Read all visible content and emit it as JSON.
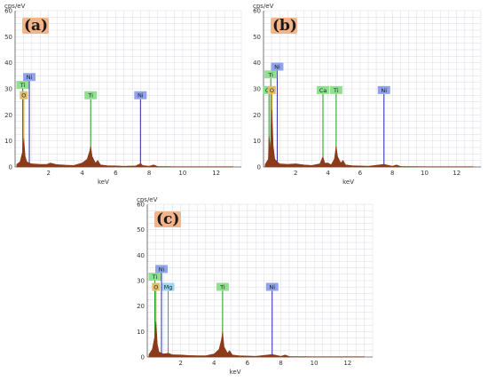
{
  "colors": {
    "grid": "#d9d9e3",
    "axis": "#555555",
    "spectrum_fill": "#8b3a1a",
    "panel_label_bg": "#f2b48a",
    "tag_ti": "#8fe08f",
    "tag_o": "#e0c070",
    "tag_ni": "#8fa3ee",
    "tag_ca": "#8fe08f",
    "tag_mg": "#99d6f0",
    "line_ti": "#1f9b1f",
    "line_o": "#c09020",
    "line_ni": "#2a2ab0",
    "line_ca": "#1f9b1f",
    "line_mg": "#2aa0d8"
  },
  "chart_data": [
    {
      "panel": "a",
      "type": "area",
      "panel_label": "(a)",
      "ylabel": "cps/eV",
      "xlabel": "keV",
      "xlim": [
        0,
        13.5
      ],
      "ylim": [
        0,
        60
      ],
      "xticks": [
        2,
        4,
        6,
        8,
        10,
        12
      ],
      "yticks": [
        0,
        10,
        20,
        30,
        40,
        50,
        60
      ],
      "grid": true,
      "spectrum": {
        "x": [
          0.1,
          0.3,
          0.45,
          0.52,
          0.6,
          0.7,
          0.85,
          1.0,
          1.5,
          1.9,
          2.1,
          2.5,
          3.0,
          3.5,
          4.0,
          4.3,
          4.45,
          4.51,
          4.6,
          4.8,
          4.93,
          5.1,
          5.5,
          6.5,
          7.2,
          7.45,
          7.48,
          7.6,
          8.0,
          8.26,
          8.5,
          9.5,
          11,
          13
        ],
        "y": [
          1,
          2,
          6,
          11,
          4,
          2,
          1.5,
          1.2,
          1,
          1,
          1.5,
          0.9,
          0.7,
          0.6,
          1.5,
          3,
          6,
          8,
          4,
          1.5,
          2.5,
          0.8,
          0.5,
          0.3,
          0.4,
          1.2,
          1.5,
          0.6,
          0.3,
          0.8,
          0.2,
          0.1,
          0.1,
          0.1
        ]
      },
      "markers": [
        {
          "element": "Ti",
          "kev": 0.45,
          "height": 30,
          "key": "ti"
        },
        {
          "element": "O",
          "kev": 0.52,
          "height": 26,
          "key": "o"
        },
        {
          "element": "Ni",
          "kev": 0.85,
          "height": 33,
          "key": "ni"
        },
        {
          "element": "Ti",
          "kev": 4.51,
          "height": 26,
          "key": "ti"
        },
        {
          "element": "Ni",
          "kev": 7.48,
          "height": 26,
          "key": "ni"
        }
      ]
    },
    {
      "panel": "b",
      "type": "area",
      "panel_label": "(b)",
      "ylabel": "cps/eV",
      "xlabel": "keV",
      "xlim": [
        0,
        13.5
      ],
      "ylim": [
        0,
        60
      ],
      "xticks": [
        2,
        4,
        6,
        8,
        10,
        12
      ],
      "yticks": [
        0,
        10,
        20,
        30,
        40,
        50,
        60
      ],
      "grid": true,
      "spectrum": {
        "x": [
          0.1,
          0.3,
          0.34,
          0.45,
          0.52,
          0.6,
          0.7,
          0.85,
          1.0,
          1.5,
          2.0,
          2.5,
          3.0,
          3.5,
          3.69,
          3.8,
          4.01,
          4.2,
          4.4,
          4.51,
          4.6,
          4.8,
          4.93,
          5.1,
          5.5,
          6.5,
          7.48,
          8.0,
          8.26,
          8.5,
          10,
          13
        ],
        "y": [
          1,
          3,
          12,
          6,
          22,
          8,
          3,
          2,
          1.2,
          1,
          1.2,
          0.8,
          0.6,
          1.2,
          4,
          1.5,
          1.5,
          0.8,
          3,
          8,
          4,
          1.5,
          2.5,
          0.8,
          0.5,
          0.3,
          1,
          0.3,
          0.8,
          0.2,
          0.1,
          0.1
        ]
      },
      "markers": [
        {
          "element": "Ti",
          "kev": 0.45,
          "height": 34,
          "key": "ti"
        },
        {
          "element": "Ni",
          "kev": 0.85,
          "height": 37,
          "key": "ni"
        },
        {
          "element": "Ca",
          "kev": 0.34,
          "height": 28,
          "key": "ca"
        },
        {
          "element": "O",
          "kev": 0.52,
          "height": 28,
          "key": "o"
        },
        {
          "element": "Ca",
          "kev": 3.69,
          "height": 28,
          "key": "ca"
        },
        {
          "element": "Ti",
          "kev": 4.51,
          "height": 28,
          "key": "ti"
        },
        {
          "element": "Ni",
          "kev": 7.48,
          "height": 28,
          "key": "ni"
        }
      ]
    },
    {
      "panel": "c",
      "type": "area",
      "panel_label": "(c)",
      "ylabel": "cps/eV",
      "xlabel": "keV",
      "xlim": [
        0,
        13.5
      ],
      "ylim": [
        0,
        60
      ],
      "xticks": [
        2,
        4,
        6,
        8,
        10,
        12
      ],
      "yticks": [
        0,
        10,
        20,
        30,
        40,
        50,
        60
      ],
      "grid": true,
      "spectrum": {
        "x": [
          0.1,
          0.3,
          0.45,
          0.52,
          0.6,
          0.7,
          0.85,
          1.0,
          1.25,
          1.5,
          2.0,
          2.5,
          3.0,
          3.5,
          4.0,
          4.3,
          4.45,
          4.51,
          4.6,
          4.8,
          4.93,
          5.1,
          5.5,
          6.5,
          7.48,
          8.0,
          8.26,
          8.5,
          10,
          13
        ],
        "y": [
          1,
          3,
          8,
          14,
          5,
          2,
          1.5,
          1.2,
          1.5,
          0.9,
          0.8,
          0.6,
          0.5,
          0.5,
          1.2,
          3,
          7,
          10,
          4,
          1.5,
          2.5,
          0.8,
          0.5,
          0.3,
          1,
          0.3,
          0.8,
          0.2,
          0.1,
          0.1
        ]
      },
      "markers": [
        {
          "element": "Ti",
          "kev": 0.45,
          "height": 30,
          "key": "ti"
        },
        {
          "element": "O",
          "kev": 0.52,
          "height": 26,
          "key": "o"
        },
        {
          "element": "Ni",
          "kev": 0.85,
          "height": 33,
          "key": "ni"
        },
        {
          "element": "Mg",
          "kev": 1.25,
          "height": 26,
          "key": "mg"
        },
        {
          "element": "Ti",
          "kev": 4.51,
          "height": 26,
          "key": "ti"
        },
        {
          "element": "Ni",
          "kev": 7.48,
          "height": 26,
          "key": "ni"
        }
      ]
    }
  ]
}
